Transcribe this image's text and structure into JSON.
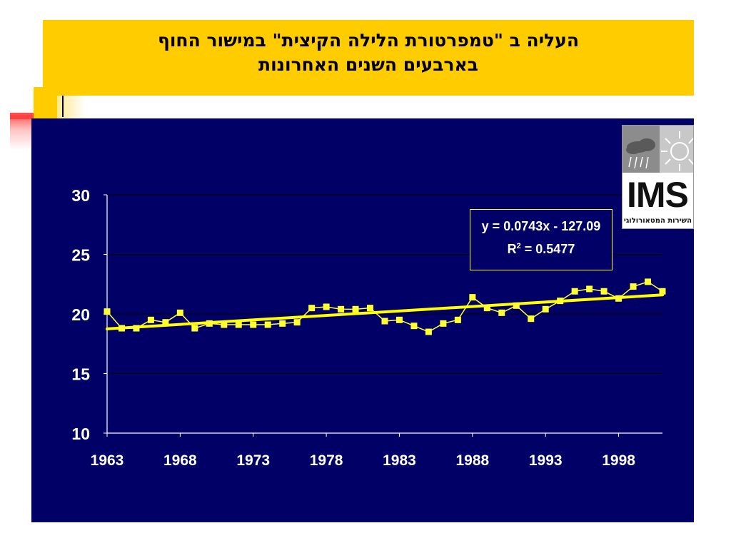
{
  "title": {
    "line1": "העליה ב \"טמפרטורת הלילה הקיצית\" במישור החוף",
    "line2": "בארבעים השנים האחרונות"
  },
  "logo": {
    "text": "IMS",
    "subtext": "השירות המטאורולוגי"
  },
  "regression": {
    "equation": "y = 0.0743x - 127.09",
    "r2_prefix": "R",
    "r2_exp": "2",
    "r2_value": " = 0.5477",
    "slope": 0.0743,
    "intercept": -127.09
  },
  "colors": {
    "title_bg": "#ffcc00",
    "panel_bg": "#000066",
    "series": "#ffff33",
    "trend": "#ffff00",
    "axis_text": "#ffffff"
  },
  "chart_data": {
    "type": "line",
    "title": "",
    "xlabel": "",
    "ylabel": "",
    "ylim": [
      10,
      30
    ],
    "yticks": [
      10,
      15,
      20,
      25,
      30
    ],
    "xticks": [
      1963,
      1968,
      1973,
      1978,
      1983,
      1988,
      1993,
      1998
    ],
    "xlim": [
      1963,
      2001
    ],
    "grid": "horizontal",
    "series": [
      {
        "marker": "square",
        "x": [
          1963,
          1964,
          1965,
          1966,
          1967,
          1968,
          1969,
          1970,
          1971,
          1972,
          1973,
          1974,
          1975,
          1976,
          1977,
          1978,
          1979,
          1980,
          1981,
          1982,
          1983,
          1984,
          1985,
          1986,
          1987,
          1988,
          1989,
          1990,
          1991,
          1992,
          1993,
          1994,
          1995,
          1996,
          1997,
          1998,
          1999,
          2000,
          2001
        ],
        "values": [
          20.2,
          18.8,
          18.8,
          19.5,
          19.3,
          20.1,
          18.8,
          19.2,
          19.1,
          19.1,
          19.1,
          19.1,
          19.2,
          19.3,
          20.5,
          20.6,
          20.4,
          20.4,
          20.5,
          19.4,
          19.5,
          19.0,
          18.5,
          19.2,
          19.5,
          21.4,
          20.5,
          20.1,
          20.7,
          19.6,
          20.4,
          21.1,
          21.9,
          22.1,
          21.9,
          21.3,
          22.3,
          22.7,
          21.9
        ]
      }
    ],
    "trendline": {
      "x_start": 1963,
      "x_end": 2001,
      "y_start": 18.75,
      "y_end": 21.6
    }
  }
}
